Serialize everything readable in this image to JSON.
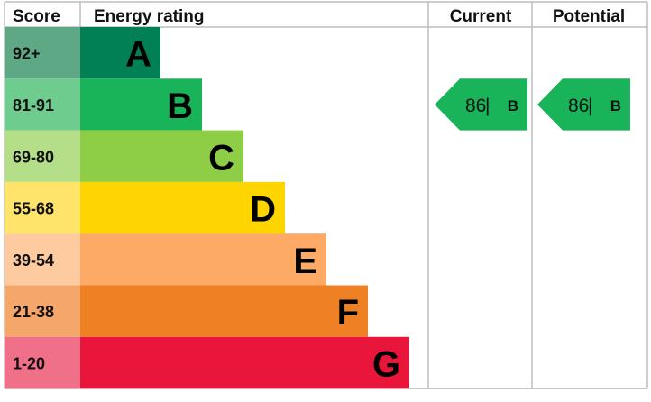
{
  "chart_data": {
    "type": "bar",
    "headers": {
      "score": "Score",
      "rating": "Energy rating",
      "current": "Current",
      "potential": "Potential"
    },
    "bands": [
      {
        "letter": "A",
        "range": "92+",
        "color": "#008054",
        "light": "#5fa886"
      },
      {
        "letter": "B",
        "range": "81-91",
        "color": "#19b459",
        "light": "#6fcc8f"
      },
      {
        "letter": "C",
        "range": "69-80",
        "color": "#8dce46",
        "light": "#b4de87"
      },
      {
        "letter": "D",
        "range": "55-68",
        "color": "#ffd500",
        "light": "#ffe46b"
      },
      {
        "letter": "E",
        "range": "39-54",
        "color": "#fcaa65",
        "light": "#fdcb9f"
      },
      {
        "letter": "F",
        "range": "21-38",
        "color": "#ef8023",
        "light": "#f4a66b"
      },
      {
        "letter": "G",
        "range": "1-20",
        "color": "#e9153b",
        "light": "#f07089"
      }
    ],
    "current": {
      "score": "86",
      "separator": "|",
      "letter": "B",
      "color": "#19b459"
    },
    "potential": {
      "score": "86",
      "separator": "|",
      "letter": "B",
      "color": "#19b459"
    }
  }
}
